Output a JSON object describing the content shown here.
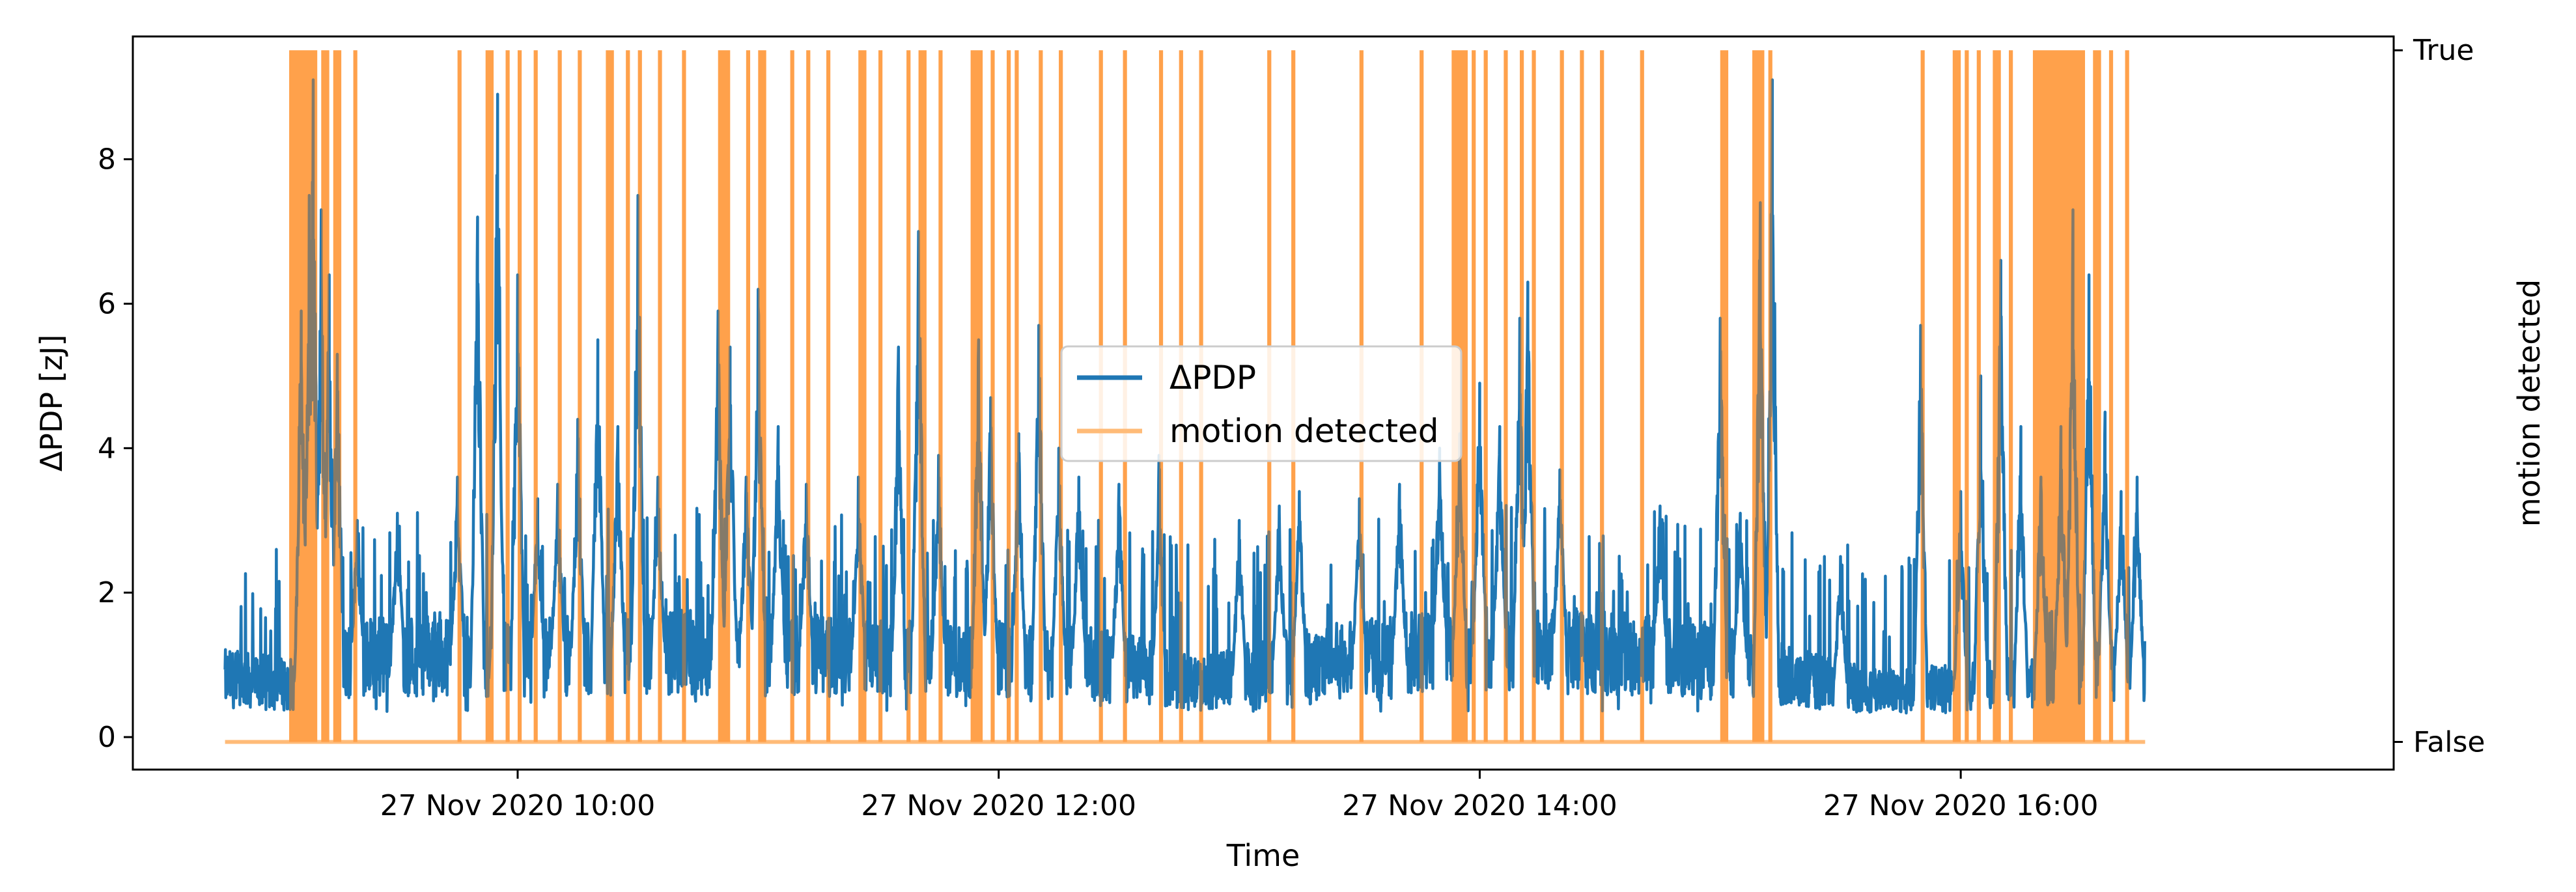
{
  "chart_data": {
    "type": "line",
    "xlabel": "Time",
    "ylabel": "ΔPDP [zJ]",
    "ylabel_right": "motion detected",
    "x_range": [
      "27 Nov 2020 08:24",
      "27 Nov 2020 17:48"
    ],
    "ylim": [
      -0.45,
      9.7
    ],
    "yticks": [
      0,
      2,
      4,
      6,
      8
    ],
    "xticks": [
      {
        "value": "27 Nov 2020 10:00",
        "label": "27 Nov 2020 10:00"
      },
      {
        "value": "27 Nov 2020 12:00",
        "label": "27 Nov 2020 12:00"
      },
      {
        "value": "27 Nov 2020 14:00",
        "label": "27 Nov 2020 14:00"
      },
      {
        "value": "27 Nov 2020 16:00",
        "label": "27 Nov 2020 16:00"
      }
    ],
    "right_axis": {
      "ticks": [
        "False",
        "True"
      ],
      "lim": [
        -0.04,
        1.02
      ]
    },
    "legend": {
      "position": "center",
      "entries": [
        "ΔPDP",
        "motion detected"
      ]
    },
    "grid": false,
    "data_start": "27 Nov 2020 08:47",
    "data_end": "27 Nov 2020 16:46",
    "colors": {
      "pdp": "#1f77b4",
      "motion": "#ff7f0e"
    },
    "series": [
      {
        "name": "ΔPDP",
        "axis": "left",
        "baseline_points": [
          [
            "27 Nov 2020 08:47",
            0.9
          ],
          [
            "27 Nov 2020 09:05",
            0.8
          ],
          [
            "27 Nov 2020 09:20",
            1.2
          ],
          [
            "27 Nov 2020 09:40",
            1.3
          ],
          [
            "27 Nov 2020 10:00",
            1.2
          ],
          [
            "27 Nov 2020 10:30",
            1.3
          ],
          [
            "27 Nov 2020 11:00",
            1.3
          ],
          [
            "27 Nov 2020 11:30",
            1.2
          ],
          [
            "27 Nov 2020 12:00",
            1.2
          ],
          [
            "27 Nov 2020 12:30",
            1.1
          ],
          [
            "27 Nov 2020 12:50",
            0.8
          ],
          [
            "27 Nov 2020 13:10",
            1.1
          ],
          [
            "27 Nov 2020 13:30",
            1.2
          ],
          [
            "27 Nov 2020 14:00",
            1.4
          ],
          [
            "27 Nov 2020 14:30",
            1.3
          ],
          [
            "27 Nov 2020 15:00",
            1.2
          ],
          [
            "27 Nov 2020 15:20",
            0.9
          ],
          [
            "27 Nov 2020 15:40",
            0.7
          ],
          [
            "27 Nov 2020 16:00",
            0.75
          ],
          [
            "27 Nov 2020 16:30",
            1.0
          ],
          [
            "27 Nov 2020 16:46",
            1.0
          ]
        ],
        "peaks": [
          [
            "27 Nov 2020 09:06",
            5.9
          ],
          [
            "27 Nov 2020 09:08",
            7.5
          ],
          [
            "27 Nov 2020 09:09",
            9.1
          ],
          [
            "27 Nov 2020 09:11",
            7.3
          ],
          [
            "27 Nov 2020 09:13",
            6.4
          ],
          [
            "27 Nov 2020 09:15",
            5.3
          ],
          [
            "27 Nov 2020 09:20",
            3.0
          ],
          [
            "27 Nov 2020 09:30",
            3.1
          ],
          [
            "27 Nov 2020 09:45",
            3.6
          ],
          [
            "27 Nov 2020 09:50",
            7.2
          ],
          [
            "27 Nov 2020 09:55",
            8.9
          ],
          [
            "27 Nov 2020 10:00",
            6.4
          ],
          [
            "27 Nov 2020 10:05",
            3.3
          ],
          [
            "27 Nov 2020 10:10",
            3.5
          ],
          [
            "27 Nov 2020 10:15",
            4.4
          ],
          [
            "27 Nov 2020 10:20",
            5.5
          ],
          [
            "27 Nov 2020 10:25",
            4.3
          ],
          [
            "27 Nov 2020 10:30",
            7.5
          ],
          [
            "27 Nov 2020 10:35",
            3.6
          ],
          [
            "27 Nov 2020 10:50",
            5.9
          ],
          [
            "27 Nov 2020 10:53",
            5.4
          ],
          [
            "27 Nov 2020 10:57",
            3.6
          ],
          [
            "27 Nov 2020 11:00",
            6.2
          ],
          [
            "27 Nov 2020 11:05",
            4.3
          ],
          [
            "27 Nov 2020 11:12",
            3.5
          ],
          [
            "27 Nov 2020 11:25",
            3.6
          ],
          [
            "27 Nov 2020 11:35",
            5.4
          ],
          [
            "27 Nov 2020 11:40",
            7.0
          ],
          [
            "27 Nov 2020 11:45",
            3.9
          ],
          [
            "27 Nov 2020 11:55",
            5.5
          ],
          [
            "27 Nov 2020 11:58",
            4.7
          ],
          [
            "27 Nov 2020 12:05",
            4.2
          ],
          [
            "27 Nov 2020 12:10",
            5.7
          ],
          [
            "27 Nov 2020 12:15",
            4.0
          ],
          [
            "27 Nov 2020 12:20",
            3.6
          ],
          [
            "27 Nov 2020 12:30",
            3.5
          ],
          [
            "27 Nov 2020 12:40",
            3.9
          ],
          [
            "27 Nov 2020 13:00",
            3.0
          ],
          [
            "27 Nov 2020 13:10",
            3.2
          ],
          [
            "27 Nov 2020 13:15",
            3.4
          ],
          [
            "27 Nov 2020 13:30",
            3.3
          ],
          [
            "27 Nov 2020 13:40",
            3.5
          ],
          [
            "27 Nov 2020 13:50",
            4.0
          ],
          [
            "27 Nov 2020 13:55",
            4.2
          ],
          [
            "27 Nov 2020 14:00",
            4.9
          ],
          [
            "27 Nov 2020 14:05",
            4.3
          ],
          [
            "27 Nov 2020 14:10",
            5.8
          ],
          [
            "27 Nov 2020 14:12",
            6.3
          ],
          [
            "27 Nov 2020 14:20",
            3.7
          ],
          [
            "27 Nov 2020 14:45",
            3.2
          ],
          [
            "27 Nov 2020 15:00",
            5.8
          ],
          [
            "27 Nov 2020 15:05",
            3.1
          ],
          [
            "27 Nov 2020 15:10",
            7.4
          ],
          [
            "27 Nov 2020 15:13",
            9.1
          ],
          [
            "27 Nov 2020 15:30",
            2.5
          ],
          [
            "27 Nov 2020 15:50",
            5.7
          ],
          [
            "27 Nov 2020 16:00",
            3.4
          ],
          [
            "27 Nov 2020 16:05",
            5.0
          ],
          [
            "27 Nov 2020 16:10",
            6.6
          ],
          [
            "27 Nov 2020 16:15",
            4.3
          ],
          [
            "27 Nov 2020 16:20",
            3.6
          ],
          [
            "27 Nov 2020 16:25",
            4.3
          ],
          [
            "27 Nov 2020 16:28",
            7.3
          ],
          [
            "27 Nov 2020 16:32",
            6.4
          ],
          [
            "27 Nov 2020 16:36",
            4.5
          ],
          [
            "27 Nov 2020 16:40",
            3.4
          ],
          [
            "27 Nov 2020 16:44",
            3.6
          ]
        ]
      },
      {
        "name": "motion detected",
        "axis": "right",
        "values": [
          false,
          true
        ],
        "true_intervals": [
          [
            "27 Nov 2020 09:03",
            "27 Nov 2020 09:10"
          ],
          [
            "27 Nov 2020 09:11",
            "27 Nov 2020 09:13"
          ],
          [
            "27 Nov 2020 09:14",
            "27 Nov 2020 09:16"
          ],
          [
            "27 Nov 2020 09:19",
            "27 Nov 2020 09:20"
          ],
          [
            "27 Nov 2020 09:45",
            "27 Nov 2020 09:46"
          ],
          [
            "27 Nov 2020 09:52",
            "27 Nov 2020 09:54"
          ],
          [
            "27 Nov 2020 09:57",
            "27 Nov 2020 09:58"
          ],
          [
            "27 Nov 2020 10:00",
            "27 Nov 2020 10:01"
          ],
          [
            "27 Nov 2020 10:04",
            "27 Nov 2020 10:05"
          ],
          [
            "27 Nov 2020 10:10",
            "27 Nov 2020 10:11"
          ],
          [
            "27 Nov 2020 10:15",
            "27 Nov 2020 10:16"
          ],
          [
            "27 Nov 2020 10:22",
            "27 Nov 2020 10:24"
          ],
          [
            "27 Nov 2020 10:27",
            "27 Nov 2020 10:28"
          ],
          [
            "27 Nov 2020 10:30",
            "27 Nov 2020 10:31"
          ],
          [
            "27 Nov 2020 10:35",
            "27 Nov 2020 10:36"
          ],
          [
            "27 Nov 2020 10:41",
            "27 Nov 2020 10:42"
          ],
          [
            "27 Nov 2020 10:50",
            "27 Nov 2020 10:53"
          ],
          [
            "27 Nov 2020 10:57",
            "27 Nov 2020 10:58"
          ],
          [
            "27 Nov 2020 11:00",
            "27 Nov 2020 11:02"
          ],
          [
            "27 Nov 2020 11:08",
            "27 Nov 2020 11:09"
          ],
          [
            "27 Nov 2020 11:12",
            "27 Nov 2020 11:13"
          ],
          [
            "27 Nov 2020 11:17",
            "27 Nov 2020 11:18"
          ],
          [
            "27 Nov 2020 11:25",
            "27 Nov 2020 11:27"
          ],
          [
            "27 Nov 2020 11:30",
            "27 Nov 2020 11:31"
          ],
          [
            "27 Nov 2020 11:37",
            "27 Nov 2020 11:38"
          ],
          [
            "27 Nov 2020 11:40",
            "27 Nov 2020 11:42"
          ],
          [
            "27 Nov 2020 11:45",
            "27 Nov 2020 11:46"
          ],
          [
            "27 Nov 2020 11:53",
            "27 Nov 2020 11:56"
          ],
          [
            "27 Nov 2020 11:58",
            "27 Nov 2020 11:59"
          ],
          [
            "27 Nov 2020 12:02",
            "27 Nov 2020 12:03"
          ],
          [
            "27 Nov 2020 12:04",
            "27 Nov 2020 12:05"
          ],
          [
            "27 Nov 2020 12:10",
            "27 Nov 2020 12:11"
          ],
          [
            "27 Nov 2020 12:15",
            "27 Nov 2020 12:16"
          ],
          [
            "27 Nov 2020 12:25",
            "27 Nov 2020 12:26"
          ],
          [
            "27 Nov 2020 12:31",
            "27 Nov 2020 12:32"
          ],
          [
            "27 Nov 2020 12:40",
            "27 Nov 2020 12:41"
          ],
          [
            "27 Nov 2020 12:45",
            "27 Nov 2020 12:46"
          ],
          [
            "27 Nov 2020 12:50",
            "27 Nov 2020 12:51"
          ],
          [
            "27 Nov 2020 13:07",
            "27 Nov 2020 13:08"
          ],
          [
            "27 Nov 2020 13:13",
            "27 Nov 2020 13:14"
          ],
          [
            "27 Nov 2020 13:30",
            "27 Nov 2020 13:31"
          ],
          [
            "27 Nov 2020 13:45",
            "27 Nov 2020 13:46"
          ],
          [
            "27 Nov 2020 13:53",
            "27 Nov 2020 13:57"
          ],
          [
            "27 Nov 2020 13:58",
            "27 Nov 2020 13:59"
          ],
          [
            "27 Nov 2020 14:01",
            "27 Nov 2020 14:02"
          ],
          [
            "27 Nov 2020 14:06",
            "27 Nov 2020 14:07"
          ],
          [
            "27 Nov 2020 14:10",
            "27 Nov 2020 14:11"
          ],
          [
            "27 Nov 2020 14:13",
            "27 Nov 2020 14:14"
          ],
          [
            "27 Nov 2020 14:20",
            "27 Nov 2020 14:21"
          ],
          [
            "27 Nov 2020 14:25",
            "27 Nov 2020 14:26"
          ],
          [
            "27 Nov 2020 14:30",
            "27 Nov 2020 14:31"
          ],
          [
            "27 Nov 2020 14:40",
            "27 Nov 2020 14:41"
          ],
          [
            "27 Nov 2020 15:00",
            "27 Nov 2020 15:02"
          ],
          [
            "27 Nov 2020 15:08",
            "27 Nov 2020 15:11"
          ],
          [
            "27 Nov 2020 15:12",
            "27 Nov 2020 15:13"
          ],
          [
            "27 Nov 2020 15:50",
            "27 Nov 2020 15:51"
          ],
          [
            "27 Nov 2020 15:58",
            "27 Nov 2020 16:00"
          ],
          [
            "27 Nov 2020 16:01",
            "27 Nov 2020 16:02"
          ],
          [
            "27 Nov 2020 16:04",
            "27 Nov 2020 16:05"
          ],
          [
            "27 Nov 2020 16:08",
            "27 Nov 2020 16:10"
          ],
          [
            "27 Nov 2020 16:12",
            "27 Nov 2020 16:13"
          ],
          [
            "27 Nov 2020 16:18",
            "27 Nov 2020 16:31"
          ],
          [
            "27 Nov 2020 16:33",
            "27 Nov 2020 16:35"
          ],
          [
            "27 Nov 2020 16:37",
            "27 Nov 2020 16:38"
          ],
          [
            "27 Nov 2020 16:41",
            "27 Nov 2020 16:42"
          ]
        ]
      }
    ]
  }
}
